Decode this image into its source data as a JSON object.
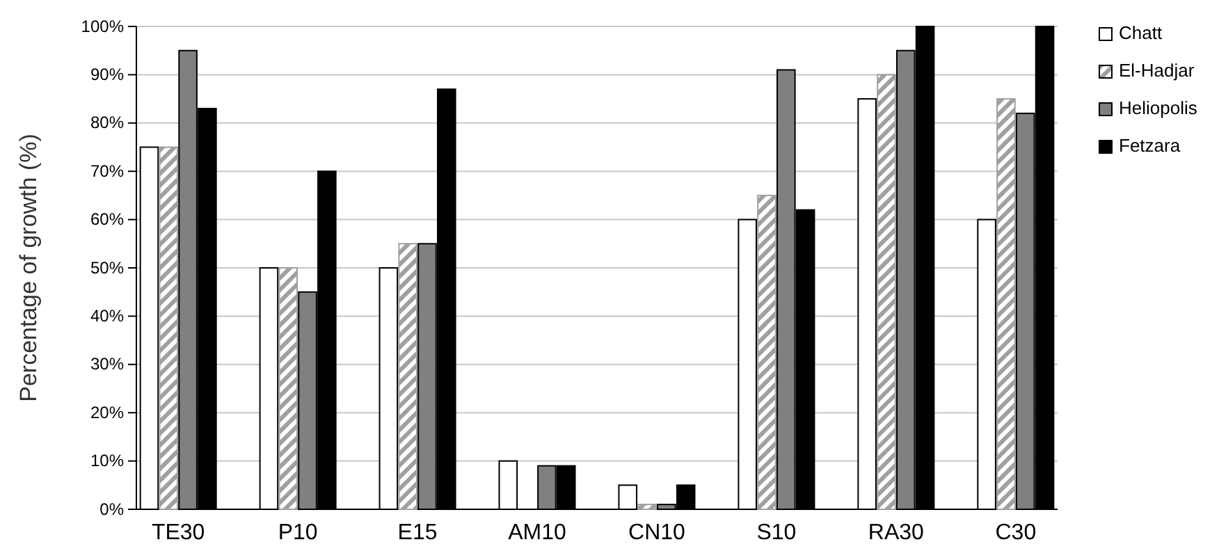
{
  "chart_data": {
    "type": "bar",
    "ylabel": "Percentage of growth (%)",
    "categories": [
      "TE30",
      "P10",
      "E15",
      "AM10",
      "CN10",
      "S10",
      "RA30",
      "C30"
    ],
    "series": [
      {
        "name": "Chatt",
        "color": "#ffffff",
        "values": [
          75,
          50,
          50,
          10,
          5,
          60,
          85,
          60
        ]
      },
      {
        "name": "El-Hadjar",
        "color": "#a0a0a0",
        "values": [
          75,
          50,
          55,
          0,
          1,
          65,
          90,
          85
        ]
      },
      {
        "name": "Heliopolis",
        "color": "#808080",
        "values": [
          95,
          45,
          55,
          9,
          1,
          91,
          95,
          82
        ]
      },
      {
        "name": "Fetzara",
        "color": "#000000",
        "values": [
          83,
          70,
          87,
          9,
          5,
          62,
          100,
          100
        ]
      }
    ],
    "ylim": [
      0,
      100
    ],
    "yticks": [
      {
        "value": 0,
        "label": "0%"
      },
      {
        "value": 10,
        "label": "10%"
      },
      {
        "value": 20,
        "label": "20%"
      },
      {
        "value": 30,
        "label": "30%"
      },
      {
        "value": 40,
        "label": "40%"
      },
      {
        "value": 50,
        "label": "50%"
      },
      {
        "value": 60,
        "label": "60%"
      },
      {
        "value": 70,
        "label": "70%"
      },
      {
        "value": 80,
        "label": "80%"
      },
      {
        "value": 90,
        "label": "90%"
      },
      {
        "value": 100,
        "label": "100%"
      }
    ],
    "grid": "y",
    "legend": "right"
  }
}
